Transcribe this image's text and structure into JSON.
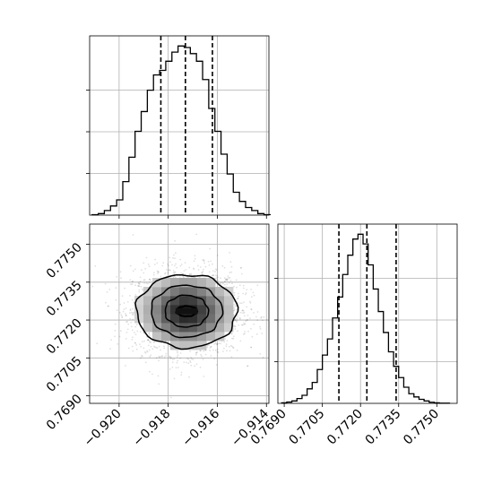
{
  "chart_data": [
    {
      "type": "histogram",
      "panel": "marginal-param-1",
      "xlim": [
        -0.9212,
        -0.9139
      ],
      "grid": true,
      "quantile_lines": [
        -0.9183,
        -0.9173,
        -0.9162
      ],
      "bin_edges": [
        -0.9211,
        -0.92085,
        -0.9206,
        -0.92035,
        -0.9201,
        -0.91985,
        -0.9196,
        -0.91935,
        -0.9191,
        -0.91885,
        -0.9186,
        -0.91835,
        -0.9181,
        -0.91785,
        -0.9176,
        -0.91735,
        -0.9171,
        -0.91685,
        -0.9166,
        -0.91635,
        -0.9161,
        -0.91585,
        -0.9156,
        -0.91535,
        -0.9151,
        -0.91485,
        -0.9146,
        -0.91435,
        -0.9141,
        -0.91385
      ],
      "counts": [
        0.3,
        1,
        3,
        6,
        10,
        22,
        38,
        55,
        68,
        82,
        92,
        95,
        101,
        107,
        111,
        110,
        106,
        101,
        89,
        70,
        55,
        40,
        27,
        15,
        9,
        5,
        3,
        1,
        0.3
      ]
    },
    {
      "type": "histogram",
      "panel": "marginal-param-2",
      "xlim": [
        0.76875,
        0.7758
      ],
      "grid": true,
      "quantile_lines": [
        0.77115,
        0.77225,
        0.7734
      ],
      "xticks": [
        "0.7690",
        "0.7705",
        "0.7720",
        "0.7735",
        "0.7750"
      ],
      "xtick_values": [
        0.769,
        0.7705,
        0.772,
        0.7735,
        0.775
      ],
      "bin_edges": [
        0.7689,
        0.7691,
        0.7693,
        0.7695,
        0.7697,
        0.7699,
        0.7701,
        0.7703,
        0.7705,
        0.7707,
        0.7709,
        0.7711,
        0.7713,
        0.7715,
        0.7717,
        0.7719,
        0.7721,
        0.7723,
        0.7725,
        0.7727,
        0.7729,
        0.7731,
        0.7733,
        0.7735,
        0.7737,
        0.7739,
        0.7741,
        0.7743,
        0.7745,
        0.7747,
        0.7749,
        0.7751,
        0.7753,
        0.7755
      ],
      "counts": [
        0.3,
        0.8,
        1.5,
        3,
        5,
        9,
        13,
        21,
        30,
        40,
        53,
        66,
        80,
        92,
        102,
        105,
        99,
        86,
        71,
        57,
        44,
        32,
        23,
        16,
        10,
        6,
        4,
        2.5,
        1.5,
        0.7,
        0.3,
        0.1,
        0.1
      ]
    },
    {
      "type": "scatter",
      "panel": "joint",
      "xlim": [
        -0.9212,
        -0.9139
      ],
      "ylim": [
        0.7687,
        0.7758
      ],
      "grid": true,
      "xticks": [
        "−0.920",
        "−0.918",
        "−0.916",
        "−0.914"
      ],
      "xtick_values": [
        -0.92,
        -0.918,
        -0.916,
        -0.914
      ],
      "yticks": [
        "0.7690",
        "0.7705",
        "0.7720",
        "0.7735",
        "0.7750"
      ],
      "ytick_values": [
        0.769,
        0.7705,
        0.772,
        0.7735,
        0.775
      ],
      "center": [
        -0.91725,
        0.77235
      ],
      "std": [
        0.0011,
        0.00085
      ],
      "contour_levels": [
        {
          "rx": 0.00205,
          "ry": 0.00145
        },
        {
          "rx": 0.00145,
          "ry": 0.00103
        },
        {
          "rx": 0.00088,
          "ry": 0.00063
        },
        {
          "rx": 0.00042,
          "ry": 0.0002
        }
      ]
    }
  ]
}
